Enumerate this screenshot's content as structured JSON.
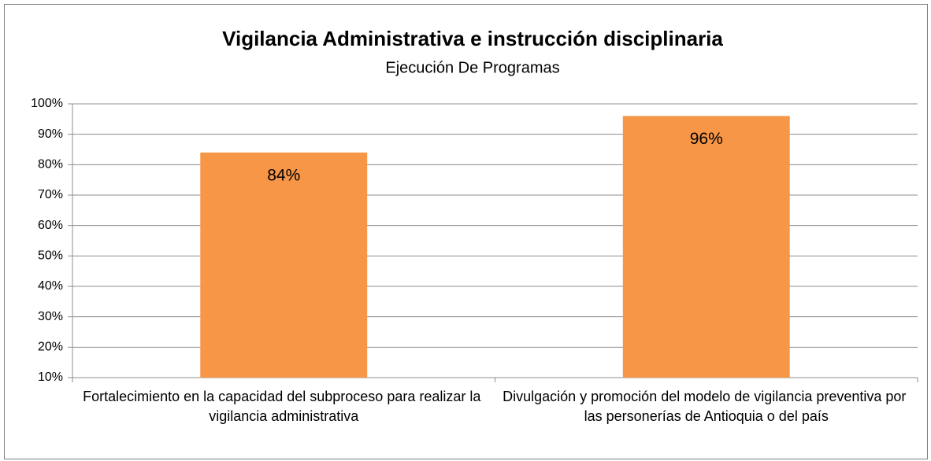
{
  "chart_data": {
    "type": "bar",
    "title": "Vigilancia Administrativa e instrucción disciplinaria",
    "subtitle": "Ejecución De Programas",
    "categories": [
      "Fortalecimiento en la capacidad del subproceso para realizar la vigilancia administrativa",
      "Divulgación y promoción del modelo de vigilancia preventiva por las personerías de Antioquia o del país"
    ],
    "values": [
      84,
      96
    ],
    "value_labels": [
      "84%",
      "96%"
    ],
    "color": "#f79646",
    "ylim": [
      10,
      100
    ],
    "yticks": [
      {
        "value": 10,
        "label": "10%"
      },
      {
        "value": 20,
        "label": "20%"
      },
      {
        "value": 30,
        "label": "30%"
      },
      {
        "value": 40,
        "label": "40%"
      },
      {
        "value": 50,
        "label": "50%"
      },
      {
        "value": 60,
        "label": "60%"
      },
      {
        "value": 70,
        "label": "70%"
      },
      {
        "value": 80,
        "label": "80%"
      },
      {
        "value": 90,
        "label": "90%"
      },
      {
        "value": 100,
        "label": "100%"
      }
    ],
    "grid": true
  }
}
